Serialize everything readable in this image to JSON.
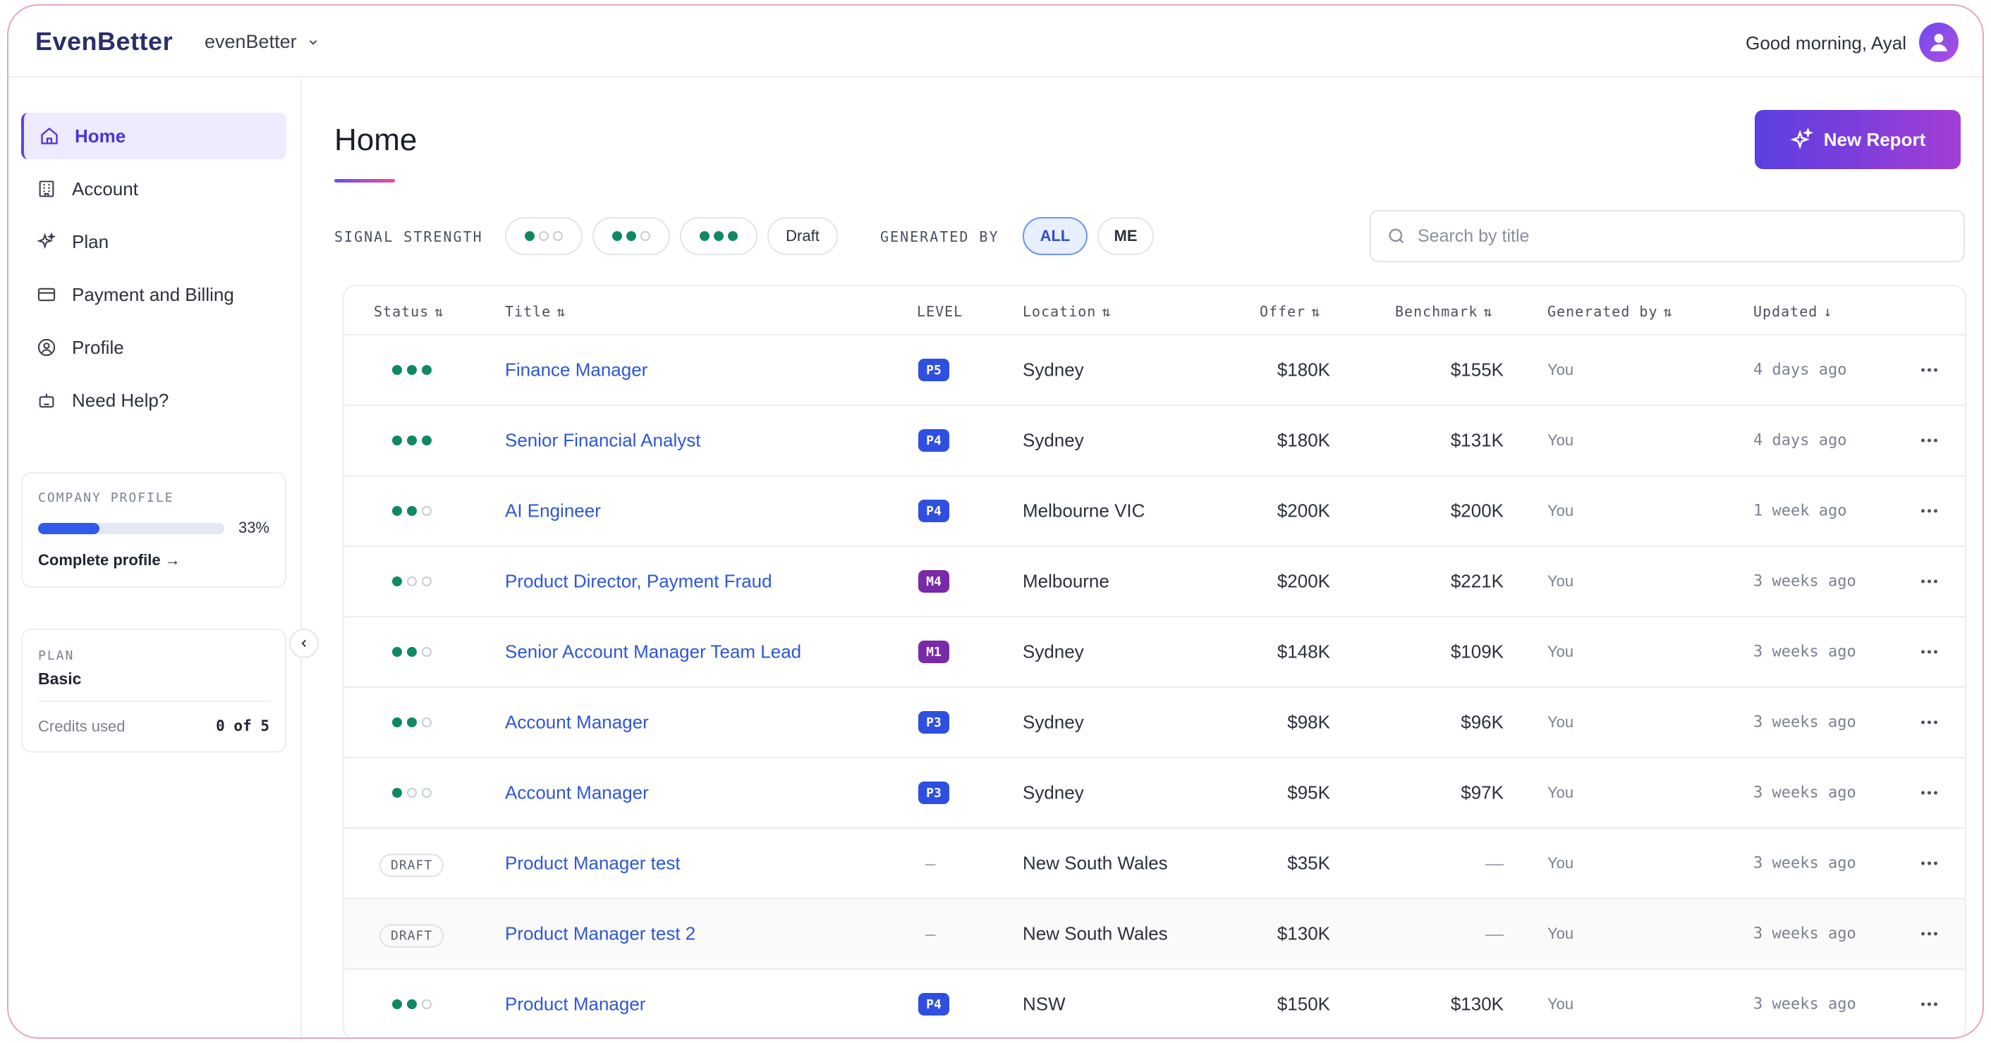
{
  "brand": {
    "logo_text": "EvenBetter",
    "org_name": "evenBetter"
  },
  "header": {
    "greeting": "Good morning, Ayal"
  },
  "sidebar": {
    "items": [
      {
        "label": "Home",
        "icon": "home-icon",
        "active": true
      },
      {
        "label": "Account",
        "icon": "building-icon",
        "active": false
      },
      {
        "label": "Plan",
        "icon": "sparkle-icon",
        "active": false
      },
      {
        "label": "Payment and Billing",
        "icon": "credit-card-icon",
        "active": false
      },
      {
        "label": "Profile",
        "icon": "user-circle-icon",
        "active": false
      },
      {
        "label": "Need Help?",
        "icon": "bot-icon",
        "active": false
      }
    ],
    "company_profile": {
      "label": "COMPANY PROFILE",
      "progress": 0.33,
      "percent_text": "33%",
      "link": "Complete profile →"
    },
    "plan": {
      "label": "PLAN",
      "name": "Basic",
      "credits_label": "Credits used",
      "credits_value": "0 of 5"
    }
  },
  "main": {
    "title": "Home",
    "new_report_label": "New Report",
    "filters": {
      "signal_label": "SIGNAL STRENGTH",
      "draft_label": "Draft",
      "generated_label": "GENERATED BY",
      "all_label": "ALL",
      "me_label": "ME"
    },
    "search": {
      "placeholder": "Search by title"
    }
  },
  "table": {
    "headers": {
      "status": "Status",
      "title": "Title",
      "level": "LEVEL",
      "location": "Location",
      "offer": "Offer",
      "benchmark": "Benchmark",
      "generated_by": "Generated by",
      "updated": "Updated"
    },
    "rows": [
      {
        "signal": 3,
        "title": "Finance Manager",
        "level": "P5",
        "location": "Sydney",
        "offer": "$180K",
        "benchmark": "$155K",
        "generated_by": "You",
        "updated": "4 days ago"
      },
      {
        "signal": 3,
        "title": "Senior Financial Analyst",
        "level": "P4",
        "location": "Sydney",
        "offer": "$180K",
        "benchmark": "$131K",
        "generated_by": "You",
        "updated": "4 days ago"
      },
      {
        "signal": 2,
        "title": "AI Engineer",
        "level": "P4",
        "location": "Melbourne VIC",
        "offer": "$200K",
        "benchmark": "$200K",
        "generated_by": "You",
        "updated": "1 week ago"
      },
      {
        "signal": 1,
        "title": "Product Director, Payment Fraud",
        "level": "M4",
        "location": "Melbourne",
        "offer": "$200K",
        "benchmark": "$221K",
        "generated_by": "You",
        "updated": "3 weeks ago"
      },
      {
        "signal": 2,
        "title": "Senior Account Manager Team Lead",
        "level": "M1",
        "location": "Sydney",
        "offer": "$148K",
        "benchmark": "$109K",
        "generated_by": "You",
        "updated": "3 weeks ago"
      },
      {
        "signal": 2,
        "title": "Account Manager",
        "level": "P3",
        "location": "Sydney",
        "offer": "$98K",
        "benchmark": "$96K",
        "generated_by": "You",
        "updated": "3 weeks ago"
      },
      {
        "signal": 1,
        "title": "Account Manager",
        "level": "P3",
        "location": "Sydney",
        "offer": "$95K",
        "benchmark": "$97K",
        "generated_by": "You",
        "updated": "3 weeks ago"
      },
      {
        "signal": 0,
        "status_text": "DRAFT",
        "title": "Product Manager test",
        "level": "–",
        "location": "New South Wales",
        "offer": "$35K",
        "benchmark": "—",
        "generated_by": "You",
        "updated": "3 weeks ago"
      },
      {
        "signal": 0,
        "status_text": "DRAFT",
        "title": "Product Manager test 2",
        "level": "–",
        "location": "New South Wales",
        "offer": "$130K",
        "benchmark": "—",
        "generated_by": "You",
        "updated": "3 weeks ago"
      },
      {
        "signal": 2,
        "title": "Product Manager",
        "level": "P4",
        "location": "NSW",
        "offer": "$150K",
        "benchmark": "$130K",
        "generated_by": "You",
        "updated": "3 weeks ago"
      }
    ]
  },
  "colors": {
    "accent": "#5b43e6",
    "link": "#2f57d6",
    "signal_green": "#0f8a5f",
    "badge_p": "#2f4fe0",
    "badge_m": "#7a2aa8"
  }
}
